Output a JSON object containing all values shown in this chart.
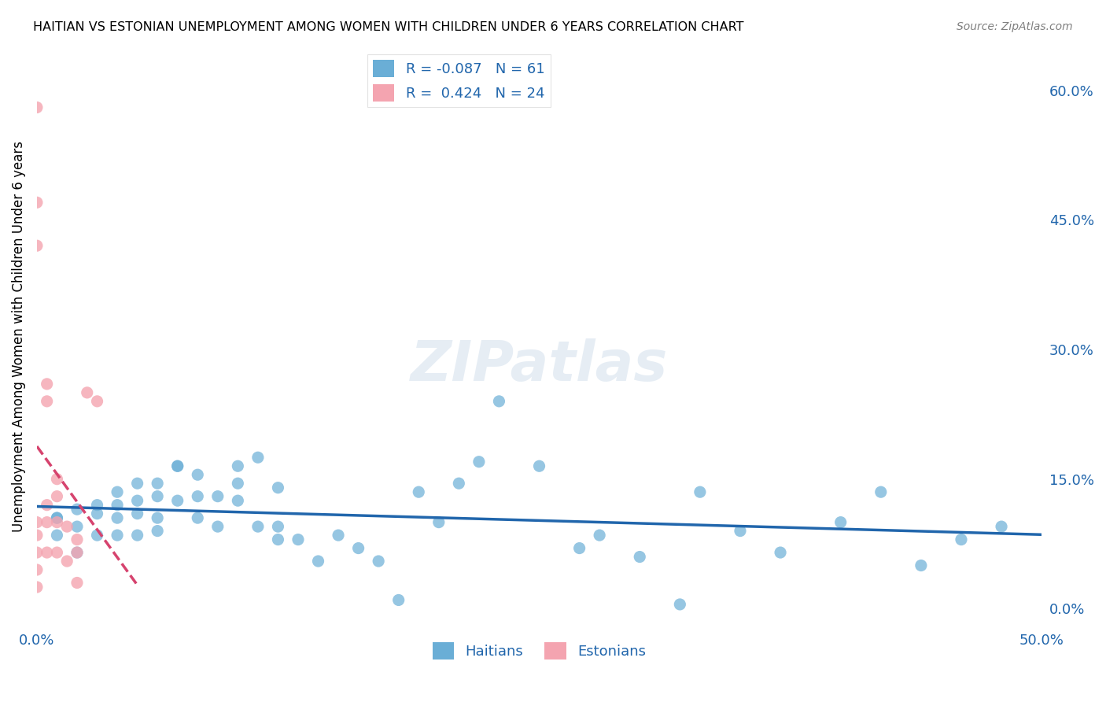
{
  "title": "HAITIAN VS ESTONIAN UNEMPLOYMENT AMONG WOMEN WITH CHILDREN UNDER 6 YEARS CORRELATION CHART",
  "source": "Source: ZipAtlas.com",
  "xlabel": "",
  "ylabel": "Unemployment Among Women with Children Under 6 years",
  "xlim": [
    0.0,
    0.5
  ],
  "ylim": [
    -0.02,
    0.65
  ],
  "xticks": [
    0.0,
    0.1,
    0.2,
    0.3,
    0.4,
    0.5
  ],
  "xtick_labels": [
    "0.0%",
    "",
    "",
    "",
    "",
    "50.0%"
  ],
  "ytick_labels_right": [
    "60.0%",
    "45.0%",
    "30.0%",
    "15.0%",
    "0.0%"
  ],
  "yticks_right": [
    0.6,
    0.45,
    0.3,
    0.15,
    0.0
  ],
  "blue_color": "#6aaed6",
  "pink_color": "#f4a4b0",
  "blue_line_color": "#2166ac",
  "pink_line_color": "#d6436e",
  "blue_R": -0.087,
  "blue_N": 61,
  "pink_R": 0.424,
  "pink_N": 24,
  "watermark": "ZIPatlas",
  "legend_label_blue": "Haitians",
  "legend_label_pink": "Estonians",
  "haitians_x": [
    0.01,
    0.01,
    0.01,
    0.02,
    0.02,
    0.02,
    0.03,
    0.03,
    0.03,
    0.04,
    0.04,
    0.04,
    0.04,
    0.05,
    0.05,
    0.05,
    0.05,
    0.06,
    0.06,
    0.06,
    0.06,
    0.07,
    0.07,
    0.07,
    0.08,
    0.08,
    0.08,
    0.09,
    0.09,
    0.1,
    0.1,
    0.11,
    0.11,
    0.12,
    0.12,
    0.13,
    0.14,
    0.15,
    0.16,
    0.17,
    0.18,
    0.19,
    0.2,
    0.21,
    0.22,
    0.23,
    0.25,
    0.27,
    0.28,
    0.3,
    0.32,
    0.33,
    0.35,
    0.37,
    0.4,
    0.42,
    0.44,
    0.46,
    0.48,
    0.1,
    0.12
  ],
  "haitians_y": [
    0.105,
    0.105,
    0.085,
    0.115,
    0.095,
    0.065,
    0.12,
    0.11,
    0.085,
    0.135,
    0.12,
    0.105,
    0.085,
    0.145,
    0.125,
    0.11,
    0.085,
    0.145,
    0.13,
    0.105,
    0.09,
    0.125,
    0.165,
    0.165,
    0.155,
    0.13,
    0.105,
    0.13,
    0.095,
    0.165,
    0.125,
    0.175,
    0.095,
    0.095,
    0.08,
    0.08,
    0.055,
    0.085,
    0.07,
    0.055,
    0.01,
    0.135,
    0.1,
    0.145,
    0.17,
    0.24,
    0.165,
    0.07,
    0.085,
    0.06,
    0.005,
    0.135,
    0.09,
    0.065,
    0.1,
    0.135,
    0.05,
    0.08,
    0.095,
    0.145,
    0.14
  ],
  "estonians_x": [
    0.0,
    0.0,
    0.0,
    0.0,
    0.0,
    0.0,
    0.0,
    0.0,
    0.005,
    0.005,
    0.005,
    0.005,
    0.005,
    0.01,
    0.01,
    0.01,
    0.01,
    0.015,
    0.015,
    0.02,
    0.02,
    0.02,
    0.025,
    0.03
  ],
  "estonians_y": [
    0.58,
    0.47,
    0.42,
    0.1,
    0.085,
    0.065,
    0.045,
    0.025,
    0.26,
    0.24,
    0.12,
    0.1,
    0.065,
    0.15,
    0.13,
    0.1,
    0.065,
    0.095,
    0.055,
    0.08,
    0.065,
    0.03,
    0.25,
    0.24
  ]
}
